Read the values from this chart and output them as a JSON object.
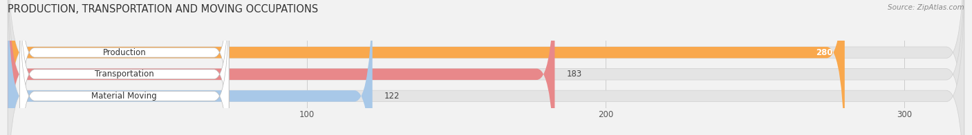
{
  "title": "PRODUCTION, TRANSPORTATION AND MOVING OCCUPATIONS",
  "source": "Source: ZipAtlas.com",
  "categories": [
    "Production",
    "Transportation",
    "Material Moving"
  ],
  "values": [
    280,
    183,
    122
  ],
  "bar_colors": [
    "#F9A84D",
    "#E8888A",
    "#A8C8E8"
  ],
  "xlim_max": 320,
  "xticks": [
    100,
    200,
    300
  ],
  "background_color": "#F2F2F2",
  "bar_bg_color": "#E4E4E4",
  "title_fontsize": 10.5,
  "label_fontsize": 8.5,
  "value_fontsize": 8.5,
  "figsize": [
    14.06,
    1.96
  ],
  "dpi": 100
}
